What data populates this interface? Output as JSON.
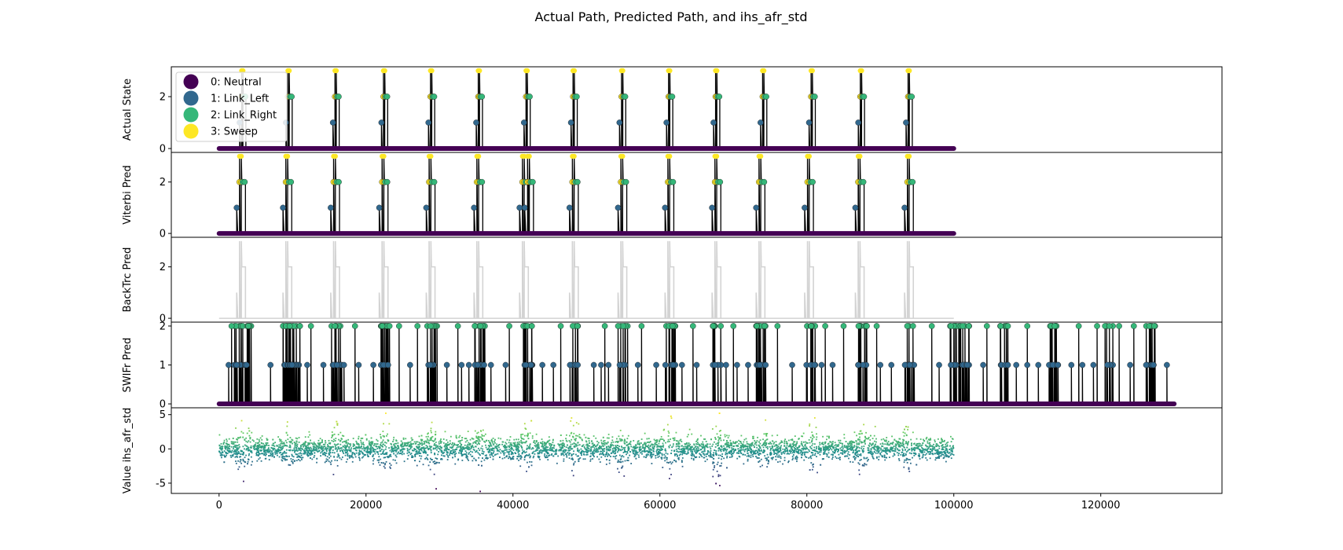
{
  "chart_data": {
    "type": "line",
    "title": "Actual Path, Predicted Path, and ihs_afr_std",
    "x": {
      "range": [
        -6500,
        136500
      ],
      "ticks": [
        0,
        20000,
        40000,
        60000,
        80000,
        100000,
        120000
      ],
      "tick_labels": [
        "0",
        "20000",
        "40000",
        "60000",
        "80000",
        "100000",
        "120000"
      ]
    },
    "legend": {
      "placement": "top-left",
      "entries": [
        {
          "label": "0: Neutral",
          "color": "#440154"
        },
        {
          "label": "1: Link_Left",
          "color": "#31688e"
        },
        {
          "label": "2: Link_Right",
          "color": "#35b779"
        },
        {
          "label": "3: Sweep",
          "color": "#fde725"
        }
      ]
    },
    "panels": [
      {
        "ylabel": "Actual State",
        "ylim": [
          -0.15,
          3.15
        ],
        "yticks": [
          0,
          2
        ],
        "x_end": 100000,
        "line_color": "#000000",
        "events": [
          3300,
          9600,
          16000,
          22600,
          29000,
          35500,
          42000,
          48400,
          55000,
          61400,
          67800,
          74200,
          80800,
          87500,
          94000
        ]
      },
      {
        "ylabel": "Viterbi Pred",
        "ylim": [
          -0.15,
          3.15
        ],
        "yticks": [
          0,
          2
        ],
        "x_end": 100000,
        "line_color": "#000000",
        "events": [
          3100,
          9400,
          15900,
          22500,
          28900,
          35400,
          41600,
          42300,
          48400,
          55000,
          61400,
          67800,
          73800,
          80400,
          87300,
          94000
        ]
      },
      {
        "ylabel": "BackTrc Pred",
        "ylim": [
          -0.15,
          3.15
        ],
        "yticks": [
          0,
          2
        ],
        "x_end": 100000,
        "line_color": "#d3d3d3",
        "events": [
          3100,
          9400,
          15900,
          22500,
          28900,
          35400,
          41600,
          48400,
          55000,
          61400,
          67800,
          73800,
          80400,
          87300,
          94000
        ]
      },
      {
        "ylabel": "SWIFr Pred",
        "ylim": [
          -0.1,
          2.1
        ],
        "yticks": [
          0,
          1,
          2
        ],
        "x_end": 130000,
        "line_color": "#000000",
        "clusters": [
          2500,
          3700,
          9400,
          10300,
          16000,
          22600,
          29000,
          35500,
          42000,
          48400,
          55000,
          61400,
          67800,
          73800,
          80600,
          87500,
          94000,
          100200,
          101600,
          106800,
          113500,
          121000,
          126800
        ],
        "isolated_ones": [
          1300,
          7000,
          12000,
          14200,
          17000,
          19000,
          21000,
          23000,
          26000,
          31000,
          33000,
          34000,
          37000,
          39000,
          44000,
          45500,
          51000,
          52000,
          53000,
          57000,
          59500,
          63000,
          65000,
          69000,
          70500,
          72000,
          78000,
          82000,
          83500,
          90000,
          91500,
          98000,
          104000,
          108500,
          110000,
          111500,
          116000,
          117500,
          119000,
          124000,
          129000
        ],
        "isolated_twos": [
          1700,
          11000,
          12500,
          18500,
          24500,
          27000,
          32500,
          34800,
          39500,
          46500,
          52500,
          57500,
          64500,
          70000,
          76000,
          82500,
          85000,
          89500,
          97000,
          104500,
          110000,
          117000,
          119500,
          122500,
          124500
        ]
      },
      {
        "ylabel": "Value ihs_afr_std",
        "ylim": [
          -6.5,
          6.0
        ],
        "yticks": [
          -5,
          0,
          5
        ],
        "x_end": 100000,
        "peaks": [
          3300,
          9600,
          16000,
          22600,
          29000,
          35500,
          42000,
          48400,
          55000,
          61400,
          67800,
          74200,
          80800,
          87500,
          94000
        ]
      }
    ]
  }
}
